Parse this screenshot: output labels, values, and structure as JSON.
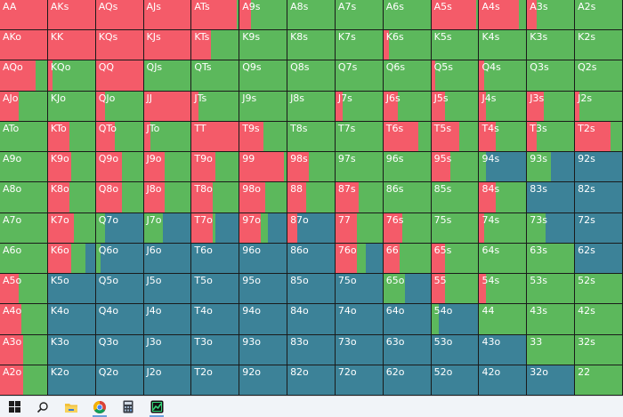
{
  "chart_data": {
    "type": "table",
    "rows": [
      [
        "AA",
        "AKs",
        "AQs",
        "AJs",
        "ATs",
        "A9s",
        "A8s",
        "A7s",
        "A6s",
        "A5s",
        "A4s",
        "A3s",
        "A2s"
      ],
      [
        "AKo",
        "KK",
        "KQs",
        "KJs",
        "KTs",
        "K9s",
        "K8s",
        "K7s",
        "K6s",
        "K5s",
        "K4s",
        "K3s",
        "K2s"
      ],
      [
        "AQo",
        "KQo",
        "QQ",
        "QJs",
        "QTs",
        "Q9s",
        "Q8s",
        "Q7s",
        "Q6s",
        "Q5s",
        "Q4s",
        "Q3s",
        "Q2s"
      ],
      [
        "AJo",
        "KJo",
        "QJo",
        "JJ",
        "JTs",
        "J9s",
        "J8s",
        "J7s",
        "J6s",
        "J5s",
        "J4s",
        "J3s",
        "J2s"
      ],
      [
        "ATo",
        "KTo",
        "QTo",
        "JTo",
        "TT",
        "T9s",
        "T8s",
        "T7s",
        "T6s",
        "T5s",
        "T4s",
        "T3s",
        "T2s"
      ],
      [
        "A9o",
        "K9o",
        "Q9o",
        "J9o",
        "T9o",
        "99",
        "98s",
        "97s",
        "96s",
        "95s",
        "94s",
        "93s",
        "92s"
      ],
      [
        "A8o",
        "K8o",
        "Q8o",
        "J8o",
        "T8o",
        "98o",
        "88",
        "87s",
        "86s",
        "85s",
        "84s",
        "83s",
        "82s"
      ],
      [
        "A7o",
        "K7o",
        "Q7o",
        "J7o",
        "T7o",
        "97o",
        "87o",
        "77",
        "76s",
        "75s",
        "74s",
        "73s",
        "72s"
      ],
      [
        "A6o",
        "K6o",
        "Q6o",
        "J6o",
        "T6o",
        "96o",
        "86o",
        "76o",
        "66",
        "65s",
        "64s",
        "63s",
        "62s"
      ],
      [
        "A5o",
        "K5o",
        "Q5o",
        "J5o",
        "T5o",
        "95o",
        "85o",
        "75o",
        "65o",
        "55",
        "54s",
        "53s",
        "52s"
      ],
      [
        "A4o",
        "K4o",
        "Q4o",
        "J4o",
        "T4o",
        "94o",
        "84o",
        "74o",
        "64o",
        "54o",
        "44",
        "43s",
        "42s"
      ],
      [
        "A3o",
        "K3o",
        "Q3o",
        "J3o",
        "T3o",
        "93o",
        "83o",
        "73o",
        "63o",
        "53o",
        "43o",
        "33",
        "32s"
      ],
      [
        "A2o",
        "K2o",
        "Q2o",
        "J2o",
        "T2o",
        "92o",
        "82o",
        "72o",
        "62o",
        "52o",
        "42o",
        "32o",
        "22"
      ]
    ],
    "frequencies": [
      [
        [
          1,
          0,
          0
        ],
        [
          1,
          0,
          0
        ],
        [
          1,
          0,
          0
        ],
        [
          1,
          0,
          0
        ],
        [
          0.95,
          0.05,
          0
        ],
        [
          0.25,
          0.75,
          0
        ],
        [
          0,
          1,
          0
        ],
        [
          0,
          1,
          0
        ],
        [
          0,
          1,
          0
        ],
        [
          0.95,
          0.05,
          0
        ],
        [
          0.85,
          0.15,
          0
        ],
        [
          0.2,
          0.8,
          0
        ],
        [
          0,
          1,
          0
        ]
      ],
      [
        [
          1,
          0,
          0
        ],
        [
          1,
          0,
          0
        ],
        [
          1,
          0,
          0
        ],
        [
          1,
          0,
          0
        ],
        [
          0.4,
          0.6,
          0
        ],
        [
          0,
          1,
          0
        ],
        [
          0,
          1,
          0
        ],
        [
          0,
          1,
          0
        ],
        [
          0.12,
          0.88,
          0
        ],
        [
          0,
          1,
          0
        ],
        [
          0,
          1,
          0
        ],
        [
          0,
          1,
          0
        ],
        [
          0,
          1,
          0
        ]
      ],
      [
        [
          0.75,
          0.25,
          0
        ],
        [
          0.1,
          0.9,
          0
        ],
        [
          1,
          0,
          0
        ],
        [
          0,
          1,
          0
        ],
        [
          0,
          1,
          0
        ],
        [
          0,
          1,
          0
        ],
        [
          0,
          1,
          0
        ],
        [
          0,
          1,
          0
        ],
        [
          0,
          1,
          0
        ],
        [
          0.08,
          0.92,
          0
        ],
        [
          0.1,
          0.9,
          0
        ],
        [
          0,
          1,
          0
        ],
        [
          0,
          1,
          0
        ]
      ],
      [
        [
          0.4,
          0.6,
          0
        ],
        [
          0,
          1,
          0
        ],
        [
          0.2,
          0.8,
          0
        ],
        [
          1,
          0,
          0
        ],
        [
          0.15,
          0.85,
          0
        ],
        [
          0,
          1,
          0
        ],
        [
          0,
          1,
          0
        ],
        [
          0.15,
          0.85,
          0
        ],
        [
          0.3,
          0.7,
          0
        ],
        [
          0.3,
          0.7,
          0
        ],
        [
          0.15,
          0.85,
          0
        ],
        [
          0.35,
          0.65,
          0
        ],
        [
          0.1,
          0.9,
          0
        ]
      ],
      [
        [
          0,
          1,
          0
        ],
        [
          0.45,
          0.55,
          0
        ],
        [
          0.4,
          0.6,
          0
        ],
        [
          0.15,
          0.85,
          0
        ],
        [
          1,
          0,
          0
        ],
        [
          0.5,
          0.5,
          0
        ],
        [
          0,
          1,
          0
        ],
        [
          0,
          1,
          0
        ],
        [
          0.75,
          0.25,
          0
        ],
        [
          0.6,
          0.4,
          0
        ],
        [
          0.35,
          0.65,
          0
        ],
        [
          0.2,
          0.8,
          0
        ],
        [
          0.75,
          0.25,
          0
        ]
      ],
      [
        [
          0,
          1,
          0
        ],
        [
          0.5,
          0.5,
          0
        ],
        [
          0.55,
          0.45,
          0
        ],
        [
          0.45,
          0.55,
          0
        ],
        [
          0.5,
          0.5,
          0
        ],
        [
          0.95,
          0.05,
          0
        ],
        [
          0.45,
          0.55,
          0
        ],
        [
          0,
          1,
          0
        ],
        [
          0,
          1,
          0
        ],
        [
          0.4,
          0.6,
          0
        ],
        [
          0,
          0.15,
          0.85
        ],
        [
          0,
          0.5,
          0.5
        ],
        [
          0,
          0,
          1
        ]
      ],
      [
        [
          0,
          1,
          0
        ],
        [
          0.45,
          0.55,
          0
        ],
        [
          0.55,
          0.45,
          0
        ],
        [
          0.45,
          0.55,
          0
        ],
        [
          0.45,
          0.55,
          0
        ],
        [
          0.55,
          0.45,
          0
        ],
        [
          0.4,
          0.6,
          0
        ],
        [
          0.5,
          0.5,
          0
        ],
        [
          0,
          1,
          0
        ],
        [
          0,
          1,
          0
        ],
        [
          0.35,
          0.65,
          0
        ],
        [
          0,
          0,
          1
        ],
        [
          0,
          0,
          1
        ]
      ],
      [
        [
          0,
          1,
          0
        ],
        [
          0.55,
          0.45,
          0
        ],
        [
          0,
          0.2,
          0.8
        ],
        [
          0,
          0.4,
          0.6
        ],
        [
          0.45,
          0.05,
          0.5
        ],
        [
          0.45,
          0.15,
          0.4
        ],
        [
          0.2,
          0,
          0.8
        ],
        [
          0.45,
          0.55,
          0
        ],
        [
          0.4,
          0.6,
          0
        ],
        [
          0,
          1,
          0
        ],
        [
          0.1,
          0.9,
          0
        ],
        [
          0,
          0.4,
          0.6
        ],
        [
          0,
          0,
          1
        ]
      ],
      [
        [
          0,
          1,
          0
        ],
        [
          0.5,
          0.3,
          0.2
        ],
        [
          0,
          0.1,
          0.9
        ],
        [
          0,
          0,
          1
        ],
        [
          0,
          0,
          1
        ],
        [
          0,
          0,
          1
        ],
        [
          0,
          0,
          1
        ],
        [
          0.45,
          0.2,
          0.35
        ],
        [
          0.35,
          0.65,
          0
        ],
        [
          0.3,
          0.7,
          0
        ],
        [
          0,
          1,
          0
        ],
        [
          0,
          1,
          0
        ],
        [
          0,
          0,
          1
        ]
      ],
      [
        [
          0.4,
          0.6,
          0
        ],
        [
          0,
          0,
          1
        ],
        [
          0,
          0,
          1
        ],
        [
          0,
          0,
          1
        ],
        [
          0,
          0,
          1
        ],
        [
          0,
          0,
          1
        ],
        [
          0,
          0,
          1
        ],
        [
          0,
          0,
          1
        ],
        [
          0,
          0.45,
          0.55
        ],
        [
          0.3,
          0.7,
          0
        ],
        [
          0.15,
          0.85,
          0
        ],
        [
          0,
          1,
          0
        ],
        [
          0,
          1,
          0
        ]
      ],
      [
        [
          0.45,
          0.55,
          0
        ],
        [
          0,
          0,
          1
        ],
        [
          0,
          0,
          1
        ],
        [
          0,
          0,
          1
        ],
        [
          0,
          0,
          1
        ],
        [
          0,
          0,
          1
        ],
        [
          0,
          0,
          1
        ],
        [
          0,
          0,
          1
        ],
        [
          0,
          0,
          1
        ],
        [
          0,
          0.15,
          0.85
        ],
        [
          0,
          1,
          0
        ],
        [
          0,
          1,
          0
        ],
        [
          0,
          1,
          0
        ]
      ],
      [
        [
          0.5,
          0.5,
          0
        ],
        [
          0,
          0,
          1
        ],
        [
          0,
          0,
          1
        ],
        [
          0,
          0,
          1
        ],
        [
          0,
          0,
          1
        ],
        [
          0,
          0,
          1
        ],
        [
          0,
          0,
          1
        ],
        [
          0,
          0,
          1
        ],
        [
          0,
          0,
          1
        ],
        [
          0,
          0,
          1
        ],
        [
          0,
          0,
          1
        ],
        [
          0,
          1,
          0
        ],
        [
          0,
          1,
          0
        ]
      ],
      [
        [
          0.5,
          0.5,
          0
        ],
        [
          0,
          0,
          1
        ],
        [
          0,
          0,
          1
        ],
        [
          0,
          0,
          1
        ],
        [
          0,
          0,
          1
        ],
        [
          0,
          0,
          1
        ],
        [
          0,
          0,
          1
        ],
        [
          0,
          0,
          1
        ],
        [
          0,
          0,
          1
        ],
        [
          0,
          0,
          1
        ],
        [
          0,
          0,
          1
        ],
        [
          0,
          0,
          1
        ],
        [
          0,
          1,
          0
        ]
      ]
    ],
    "colors": {
      "red": "#f45b69",
      "green": "#5cb85c",
      "blue": "#3c8298"
    }
  },
  "taskbar": {
    "items": [
      {
        "icon": "windows-start-icon",
        "active": false
      },
      {
        "icon": "search-icon",
        "active": false
      },
      {
        "icon": "file-explorer-icon",
        "active": false
      },
      {
        "icon": "chrome-icon",
        "active": true
      },
      {
        "icon": "calculator-icon",
        "active": false
      },
      {
        "icon": "solver-app-icon",
        "active": true
      }
    ]
  }
}
